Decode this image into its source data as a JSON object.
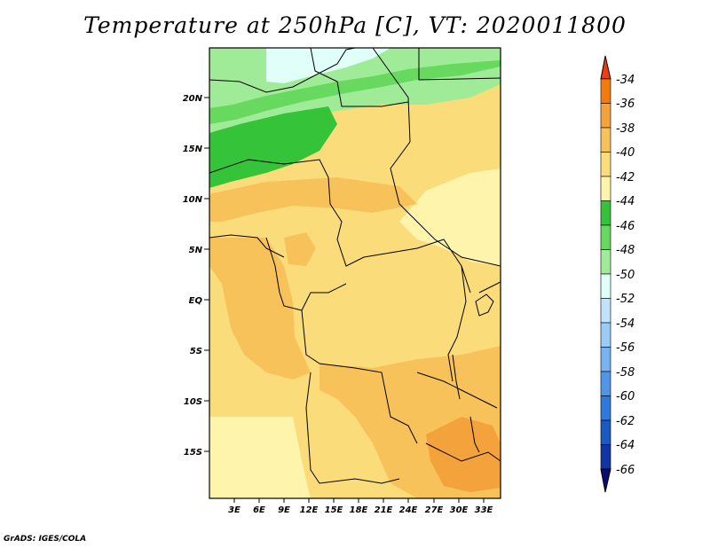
{
  "title": "Temperature at 250hPa [C], VT: 2020011800",
  "credit": "GrADS: IGES/COLA",
  "map": {
    "region": "Central Africa",
    "variable": "Temperature",
    "level": "250hPa",
    "units": "C",
    "valid_time": "2020011800",
    "lat_labels": [
      "20N",
      "15N",
      "10N",
      "5N",
      "EQ",
      "5S",
      "10S",
      "15S"
    ],
    "lon_labels": [
      "3E",
      "6E",
      "9E",
      "12E",
      "15E",
      "18E",
      "21E",
      "24E",
      "27E",
      "30E",
      "33E"
    ]
  },
  "colorbar": {
    "labels": [
      "-34",
      "-36",
      "-38",
      "-40",
      "-42",
      "-44",
      "-46",
      "-48",
      "-50",
      "-52",
      "-54",
      "-56",
      "-58",
      "-60",
      "-62",
      "-64",
      "-66"
    ],
    "colors": [
      "#f03c12",
      "#f57a0c",
      "#f4a23c",
      "#f8c25a",
      "#fbdc7a",
      "#fff4ac",
      "#35c33a",
      "#66d95e",
      "#a0eb98",
      "#e0fff8",
      "#c0e4ff",
      "#9bcbf7",
      "#78b4f1",
      "#4f96e8",
      "#2c7adc",
      "#1a58c2",
      "#1036a6",
      "#0a0c72"
    ]
  }
}
